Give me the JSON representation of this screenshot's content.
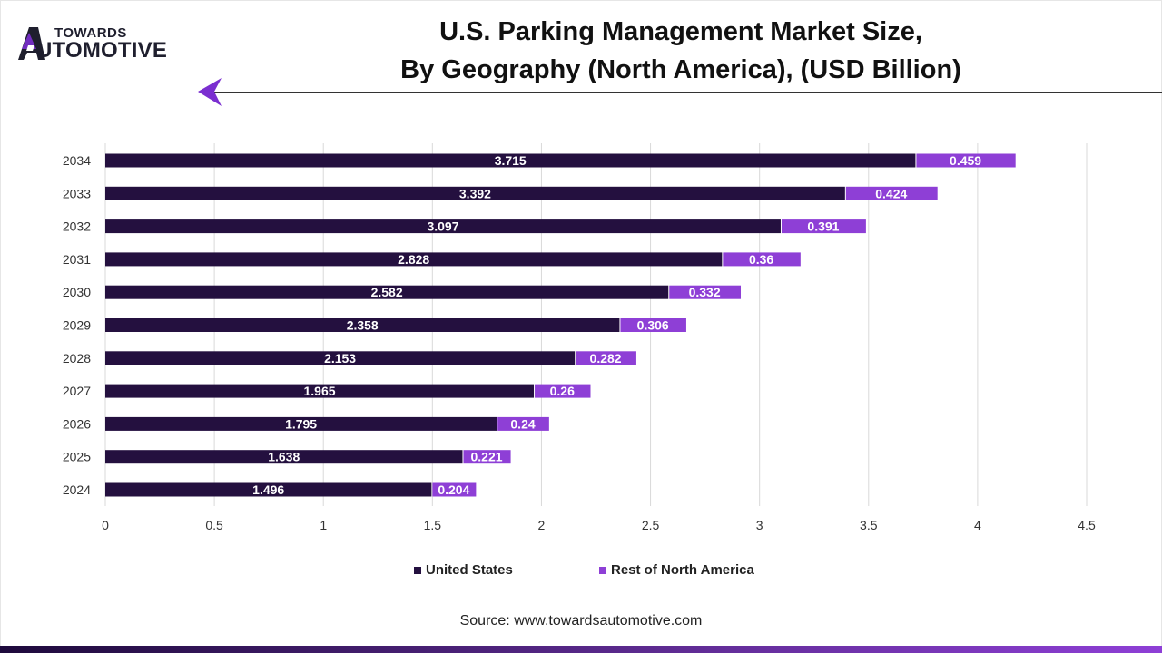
{
  "brand": {
    "line1": "TOWARDS",
    "line2": "AUTOMOTIVE",
    "line2_rest": "UTOMOTIVE"
  },
  "colors": {
    "us": "#24103f",
    "rest": "#8e3fd6",
    "grid": "#d9d9d9",
    "accent": "#7b2fd0"
  },
  "chart_data": {
    "type": "bar",
    "orientation": "horizontal",
    "stacked": true,
    "title": "U.S. Parking Management Market Size, By Geography (North America), (USD Billion)",
    "title_lines": [
      "U.S. Parking Management Market Size,",
      "By Geography (North America), (USD Billion)"
    ],
    "categories": [
      "2034",
      "2033",
      "2032",
      "2031",
      "2030",
      "2029",
      "2028",
      "2027",
      "2026",
      "2025",
      "2024"
    ],
    "series": [
      {
        "name": "United States",
        "values": [
          3.715,
          3.392,
          3.097,
          2.828,
          2.582,
          2.358,
          2.153,
          1.965,
          1.795,
          1.638,
          1.496
        ],
        "labels": [
          "3.715",
          "3.392",
          "3.097",
          "2.828",
          "2.582",
          "2.358",
          "2.153",
          "1.965",
          "1.795",
          "1.638",
          "1.496"
        ]
      },
      {
        "name": "Rest of North America",
        "values": [
          0.459,
          0.424,
          0.391,
          0.36,
          0.332,
          0.306,
          0.282,
          0.26,
          0.24,
          0.221,
          0.204
        ],
        "labels": [
          "0.459",
          "0.424",
          "0.391",
          "0.36",
          "0.332",
          "0.306",
          "0.282",
          "0.26",
          "0.24",
          "0.221",
          "0.204"
        ]
      }
    ],
    "xlim": [
      0,
      4.5
    ],
    "xticks": [
      0,
      0.5,
      1,
      1.5,
      2,
      2.5,
      3,
      3.5,
      4,
      4.5
    ],
    "xtick_labels": [
      "0",
      "0.5",
      "1",
      "1.5",
      "2",
      "2.5",
      "3",
      "3.5",
      "4",
      "4.5"
    ],
    "grid": true,
    "legend_position": "bottom"
  },
  "source": "Source: www.towardsautomotive.com"
}
